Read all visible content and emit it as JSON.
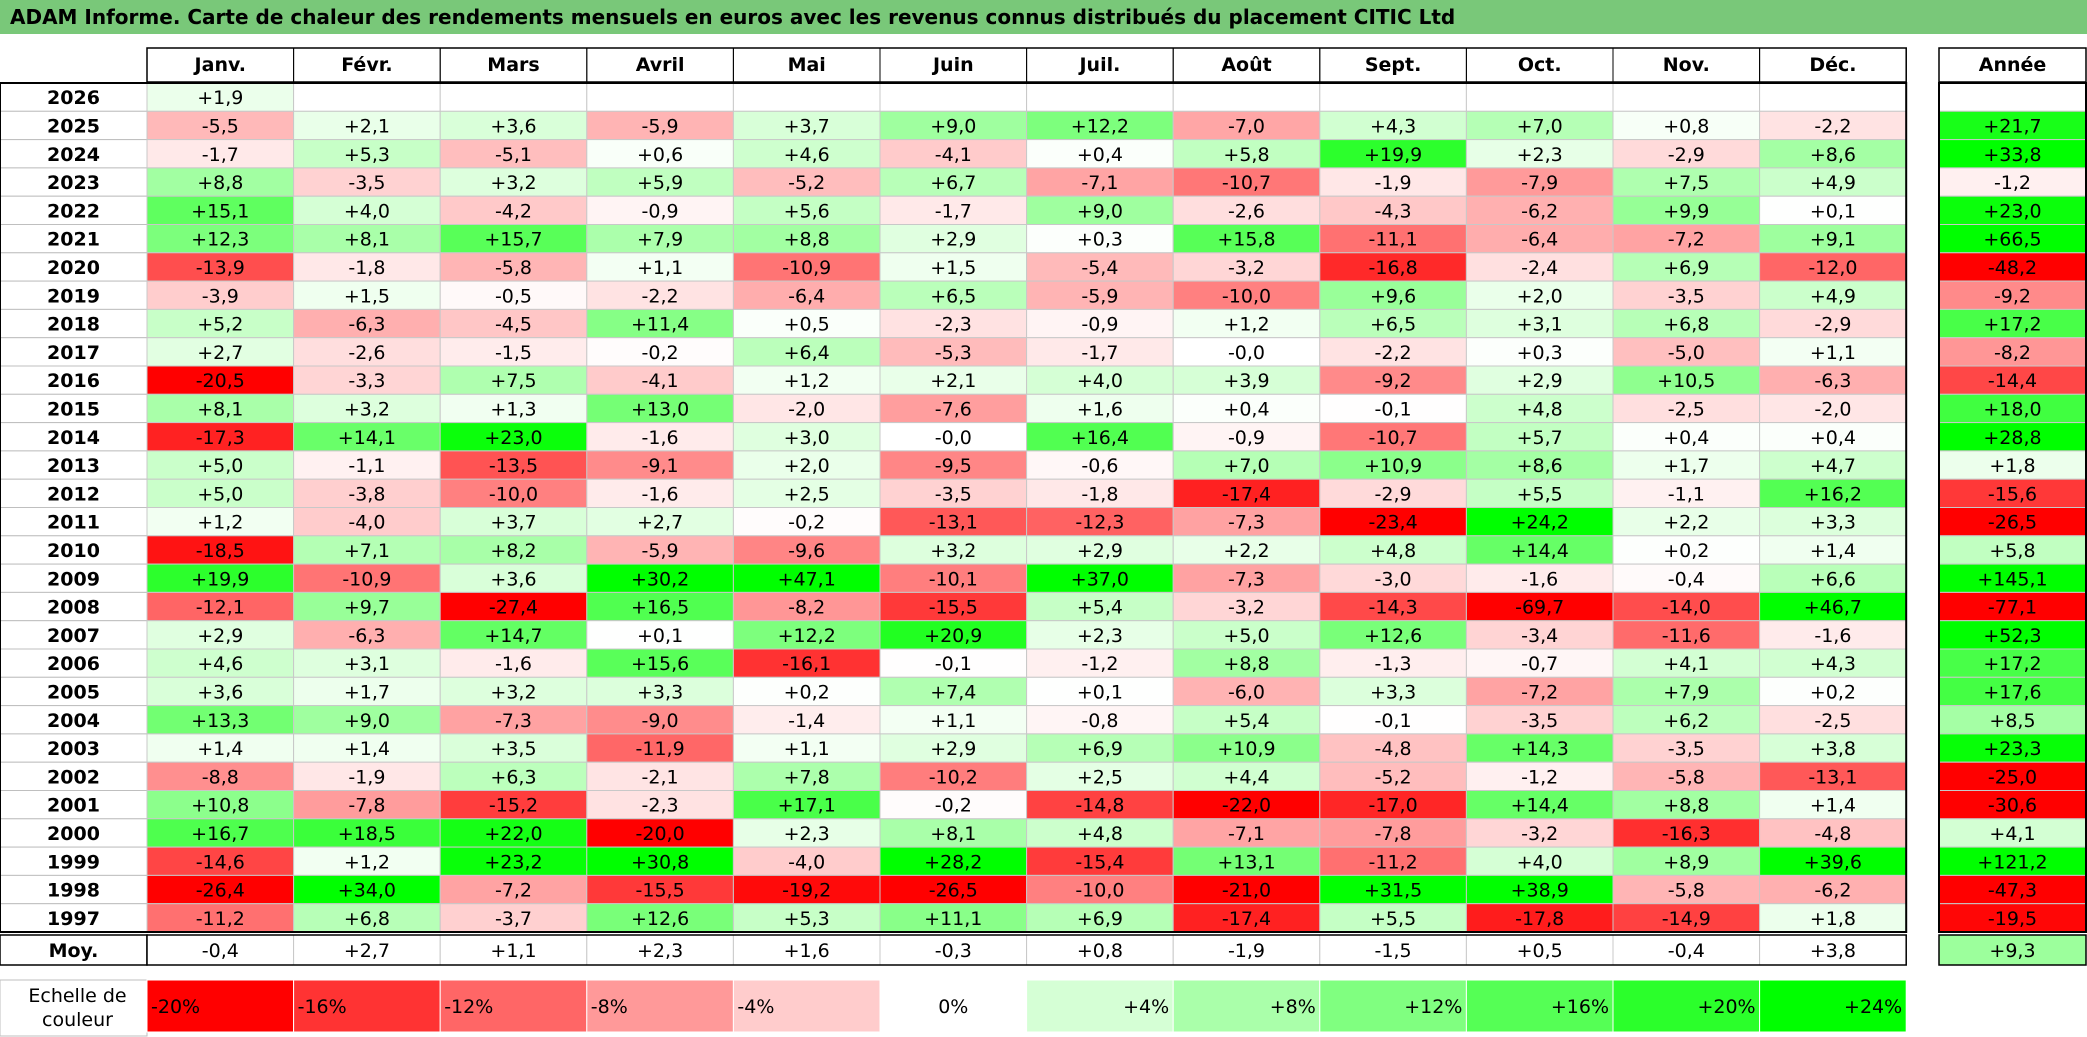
{
  "title": "ADAM Informe. Carte de chaleur des rendements mensuels en euros avec les revenus connus distribués du placement CITIC Ltd",
  "chart_data": {
    "type": "heatmap",
    "months": [
      "Janv.",
      "Févr.",
      "Mars",
      "Avril",
      "Mai",
      "Juin",
      "Juil.",
      "Août",
      "Sept.",
      "Oct.",
      "Nov.",
      "Déc."
    ],
    "year_header": "Année",
    "rows": [
      {
        "year": "2026",
        "months": [
          "+1,9",
          "",
          "",
          "",
          "",
          "",
          "",
          "",
          "",
          "",
          "",
          ""
        ],
        "annual": ""
      },
      {
        "year": "2025",
        "months": [
          "-5,5",
          "+2,1",
          "+3,6",
          "-5,9",
          "+3,7",
          "+9,0",
          "+12,2",
          "-7,0",
          "+4,3",
          "+7,0",
          "+0,8",
          "-2,2"
        ],
        "annual": "+21,7"
      },
      {
        "year": "2024",
        "months": [
          "-1,7",
          "+5,3",
          "-5,1",
          "+0,6",
          "+4,6",
          "-4,1",
          "+0,4",
          "+5,8",
          "+19,9",
          "+2,3",
          "-2,9",
          "+8,6"
        ],
        "annual": "+33,8"
      },
      {
        "year": "2023",
        "months": [
          "+8,8",
          "-3,5",
          "+3,2",
          "+5,9",
          "-5,2",
          "+6,7",
          "-7,1",
          "-10,7",
          "-1,9",
          "-7,9",
          "+7,5",
          "+4,9"
        ],
        "annual": "-1,2"
      },
      {
        "year": "2022",
        "months": [
          "+15,1",
          "+4,0",
          "-4,2",
          "-0,9",
          "+5,6",
          "-1,7",
          "+9,0",
          "-2,6",
          "-4,3",
          "-6,2",
          "+9,9",
          "+0,1"
        ],
        "annual": "+23,0"
      },
      {
        "year": "2021",
        "months": [
          "+12,3",
          "+8,1",
          "+15,7",
          "+7,9",
          "+8,8",
          "+2,9",
          "+0,3",
          "+15,8",
          "-11,1",
          "-6,4",
          "-7,2",
          "+9,1"
        ],
        "annual": "+66,5"
      },
      {
        "year": "2020",
        "months": [
          "-13,9",
          "-1,8",
          "-5,8",
          "+1,1",
          "-10,9",
          "+1,5",
          "-5,4",
          "-3,2",
          "-16,8",
          "-2,4",
          "+6,9",
          "-12,0"
        ],
        "annual": "-48,2"
      },
      {
        "year": "2019",
        "months": [
          "-3,9",
          "+1,5",
          "-0,5",
          "-2,2",
          "-6,4",
          "+6,5",
          "-5,9",
          "-10,0",
          "+9,6",
          "+2,0",
          "-3,5",
          "+4,9"
        ],
        "annual": "-9,2"
      },
      {
        "year": "2018",
        "months": [
          "+5,2",
          "-6,3",
          "-4,5",
          "+11,4",
          "+0,5",
          "-2,3",
          "-0,9",
          "+1,2",
          "+6,5",
          "+3,1",
          "+6,8",
          "-2,9"
        ],
        "annual": "+17,2"
      },
      {
        "year": "2017",
        "months": [
          "+2,7",
          "-2,6",
          "-1,5",
          "-0,2",
          "+6,4",
          "-5,3",
          "-1,7",
          "-0,0",
          "-2,2",
          "+0,3",
          "-5,0",
          "+1,1"
        ],
        "annual": "-8,2"
      },
      {
        "year": "2016",
        "months": [
          "-20,5",
          "-3,3",
          "+7,5",
          "-4,1",
          "+1,2",
          "+2,1",
          "+4,0",
          "+3,9",
          "-9,2",
          "+2,9",
          "+10,5",
          "-6,3"
        ],
        "annual": "-14,4"
      },
      {
        "year": "2015",
        "months": [
          "+8,1",
          "+3,2",
          "+1,3",
          "+13,0",
          "-2,0",
          "-7,6",
          "+1,6",
          "+0,4",
          "-0,1",
          "+4,8",
          "-2,5",
          "-2,0"
        ],
        "annual": "+18,0"
      },
      {
        "year": "2014",
        "months": [
          "-17,3",
          "+14,1",
          "+23,0",
          "-1,6",
          "+3,0",
          "-0,0",
          "+16,4",
          "-0,9",
          "-10,7",
          "+5,7",
          "+0,4",
          "+0,4"
        ],
        "annual": "+28,8"
      },
      {
        "year": "2013",
        "months": [
          "+5,0",
          "-1,1",
          "-13,5",
          "-9,1",
          "+2,0",
          "-9,5",
          "-0,6",
          "+7,0",
          "+10,9",
          "+8,6",
          "+1,7",
          "+4,7"
        ],
        "annual": "+1,8"
      },
      {
        "year": "2012",
        "months": [
          "+5,0",
          "-3,8",
          "-10,0",
          "-1,6",
          "+2,5",
          "-3,5",
          "-1,8",
          "-17,4",
          "-2,9",
          "+5,5",
          "-1,1",
          "+16,2"
        ],
        "annual": "-15,6"
      },
      {
        "year": "2011",
        "months": [
          "+1,2",
          "-4,0",
          "+3,7",
          "+2,7",
          "-0,2",
          "-13,1",
          "-12,3",
          "-7,3",
          "-23,4",
          "+24,2",
          "+2,2",
          "+3,3"
        ],
        "annual": "-26,5"
      },
      {
        "year": "2010",
        "months": [
          "-18,5",
          "+7,1",
          "+8,2",
          "-5,9",
          "-9,6",
          "+3,2",
          "+2,9",
          "+2,2",
          "+4,8",
          "+14,4",
          "+0,2",
          "+1,4"
        ],
        "annual": "+5,8"
      },
      {
        "year": "2009",
        "months": [
          "+19,9",
          "-10,9",
          "+3,6",
          "+30,2",
          "+47,1",
          "-10,1",
          "+37,0",
          "-7,3",
          "-3,0",
          "-1,6",
          "-0,4",
          "+6,6"
        ],
        "annual": "+145,1"
      },
      {
        "year": "2008",
        "months": [
          "-12,1",
          "+9,7",
          "-27,4",
          "+16,5",
          "-8,2",
          "-15,5",
          "+5,4",
          "-3,2",
          "-14,3",
          "-69,7",
          "-14,0",
          "+46,7"
        ],
        "annual": "-77,1"
      },
      {
        "year": "2007",
        "months": [
          "+2,9",
          "-6,3",
          "+14,7",
          "+0,1",
          "+12,2",
          "+20,9",
          "+2,3",
          "+5,0",
          "+12,6",
          "-3,4",
          "-11,6",
          "-1,6"
        ],
        "annual": "+52,3"
      },
      {
        "year": "2006",
        "months": [
          "+4,6",
          "+3,1",
          "-1,6",
          "+15,6",
          "-16,1",
          "-0,1",
          "-1,2",
          "+8,8",
          "-1,3",
          "-0,7",
          "+4,1",
          "+4,3"
        ],
        "annual": "+17,2"
      },
      {
        "year": "2005",
        "months": [
          "+3,6",
          "+1,7",
          "+3,2",
          "+3,3",
          "+0,2",
          "+7,4",
          "+0,1",
          "-6,0",
          "+3,3",
          "-7,2",
          "+7,9",
          "+0,2"
        ],
        "annual": "+17,6"
      },
      {
        "year": "2004",
        "months": [
          "+13,3",
          "+9,0",
          "-7,3",
          "-9,0",
          "-1,4",
          "+1,1",
          "-0,8",
          "+5,4",
          "-0,1",
          "-3,5",
          "+6,2",
          "-2,5"
        ],
        "annual": "+8,5"
      },
      {
        "year": "2003",
        "months": [
          "+1,4",
          "+1,4",
          "+3,5",
          "-11,9",
          "+1,1",
          "+2,9",
          "+6,9",
          "+10,9",
          "-4,8",
          "+14,3",
          "-3,5",
          "+3,8"
        ],
        "annual": "+23,3"
      },
      {
        "year": "2002",
        "months": [
          "-8,8",
          "-1,9",
          "+6,3",
          "-2,1",
          "+7,8",
          "-10,2",
          "+2,5",
          "+4,4",
          "-5,2",
          "-1,2",
          "-5,8",
          "-13,1"
        ],
        "annual": "-25,0"
      },
      {
        "year": "2001",
        "months": [
          "+10,8",
          "-7,8",
          "-15,2",
          "-2,3",
          "+17,1",
          "-0,2",
          "-14,8",
          "-22,0",
          "-17,0",
          "+14,4",
          "+8,8",
          "+1,4"
        ],
        "annual": "-30,6"
      },
      {
        "year": "2000",
        "months": [
          "+16,7",
          "+18,5",
          "+22,0",
          "-20,0",
          "+2,3",
          "+8,1",
          "+4,8",
          "-7,1",
          "-7,8",
          "-3,2",
          "-16,3",
          "-4,8"
        ],
        "annual": "+4,1"
      },
      {
        "year": "1999",
        "months": [
          "-14,6",
          "+1,2",
          "+23,2",
          "+30,8",
          "-4,0",
          "+28,2",
          "-15,4",
          "+13,1",
          "-11,2",
          "+4,0",
          "+8,9",
          "+39,6"
        ],
        "annual": "+121,2"
      },
      {
        "year": "1998",
        "months": [
          "-26,4",
          "+34,0",
          "-7,2",
          "-15,5",
          "-19,2",
          "-26,5",
          "-10,0",
          "-21,0",
          "+31,5",
          "+38,9",
          "-5,8",
          "-6,2"
        ],
        "annual": "-47,3"
      },
      {
        "year": "1997",
        "months": [
          "-11,2",
          "+6,8",
          "-3,7",
          "+12,6",
          "+5,3",
          "+11,1",
          "+6,9",
          "-17,4",
          "+5,5",
          "-17,8",
          "-14,9",
          "+1,8"
        ],
        "annual": "-19,5"
      }
    ],
    "average": {
      "label": "Moy.",
      "months": [
        "-0,4",
        "+2,7",
        "+1,1",
        "+2,3",
        "+1,6",
        "-0,3",
        "+0,8",
        "-1,9",
        "-1,5",
        "+0,5",
        "-0,4",
        "+3,8"
      ],
      "annual": "+9,3"
    },
    "legend": {
      "label_line1": "Echelle de",
      "label_line2": "couleur",
      "steps": [
        "-20%",
        "-16%",
        "-12%",
        "-8%",
        "-4%",
        "0%",
        "+4%",
        "+8%",
        "+12%",
        "+16%",
        "+20%",
        "+24%"
      ],
      "step_values": [
        -20,
        -16,
        -12,
        -8,
        -4,
        0,
        4,
        8,
        12,
        16,
        20,
        24
      ]
    },
    "colors": {
      "negative": "#ff0000",
      "positive": "#00ff00",
      "neutral": "#ffffff",
      "title_bar": "#79c879"
    }
  }
}
